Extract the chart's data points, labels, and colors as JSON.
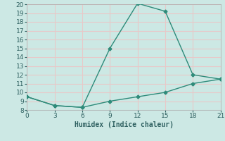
{
  "line1_x": [
    0,
    3,
    6,
    9,
    12,
    15,
    18,
    21
  ],
  "line1_y": [
    9.5,
    8.5,
    8.3,
    15.0,
    20.1,
    19.2,
    12.0,
    11.5
  ],
  "line2_x": [
    0,
    3,
    6,
    9,
    12,
    15,
    18,
    21
  ],
  "line2_y": [
    9.5,
    8.5,
    8.3,
    9.0,
    9.5,
    10.0,
    11.0,
    11.5
  ],
  "line_color": "#2e8b7a",
  "bg_color": "#cce8e4",
  "grid_color": "#e8c8c8",
  "xlabel": "Humidex (Indice chaleur)",
  "xlim": [
    0,
    21
  ],
  "ylim": [
    8,
    20
  ],
  "xticks": [
    0,
    3,
    6,
    9,
    12,
    15,
    18,
    21
  ],
  "yticks": [
    8,
    9,
    10,
    11,
    12,
    13,
    14,
    15,
    16,
    17,
    18,
    19,
    20
  ],
  "xlabel_fontsize": 7,
  "tick_fontsize": 6.5,
  "marker": "D",
  "marker_size": 2.5,
  "linewidth": 1.0
}
